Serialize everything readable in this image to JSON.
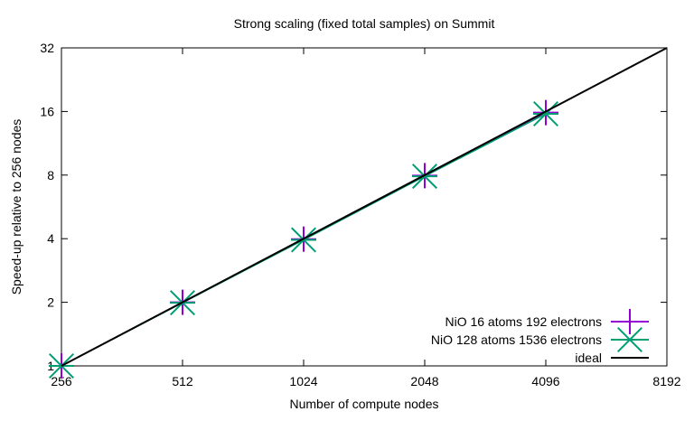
{
  "chart_data": {
    "type": "line",
    "title": "Strong scaling (fixed total samples) on Summit",
    "xlabel": "Number of compute nodes",
    "ylabel": "Speed-up relative to 256 nodes",
    "xscale": "log2",
    "yscale": "log2",
    "xlim": [
      256,
      8192
    ],
    "ylim": [
      1,
      32
    ],
    "xticks": [
      "256",
      "512",
      "1024",
      "2048",
      "4096",
      "8192"
    ],
    "yticks": [
      "1",
      "2",
      "4",
      "8",
      "16",
      "32"
    ],
    "grid": false,
    "legend_position": "bottom-right",
    "series": [
      {
        "name": "NiO 16 atoms 192 electrons",
        "color": "#9400d3",
        "marker": "plus",
        "x": [
          256,
          512,
          1024,
          2048,
          4096
        ],
        "y": [
          1,
          2,
          3.98,
          7.95,
          15.8
        ]
      },
      {
        "name": "NiO 128 atoms 1536 electrons",
        "color": "#009e73",
        "marker": "star",
        "x": [
          256,
          512,
          1024,
          2048,
          4096
        ],
        "y": [
          1,
          1.99,
          3.95,
          7.9,
          15.6
        ]
      },
      {
        "name": "ideal",
        "color": "#000000",
        "marker": "none",
        "x": [
          256,
          8192
        ],
        "y": [
          1,
          32
        ]
      }
    ]
  }
}
